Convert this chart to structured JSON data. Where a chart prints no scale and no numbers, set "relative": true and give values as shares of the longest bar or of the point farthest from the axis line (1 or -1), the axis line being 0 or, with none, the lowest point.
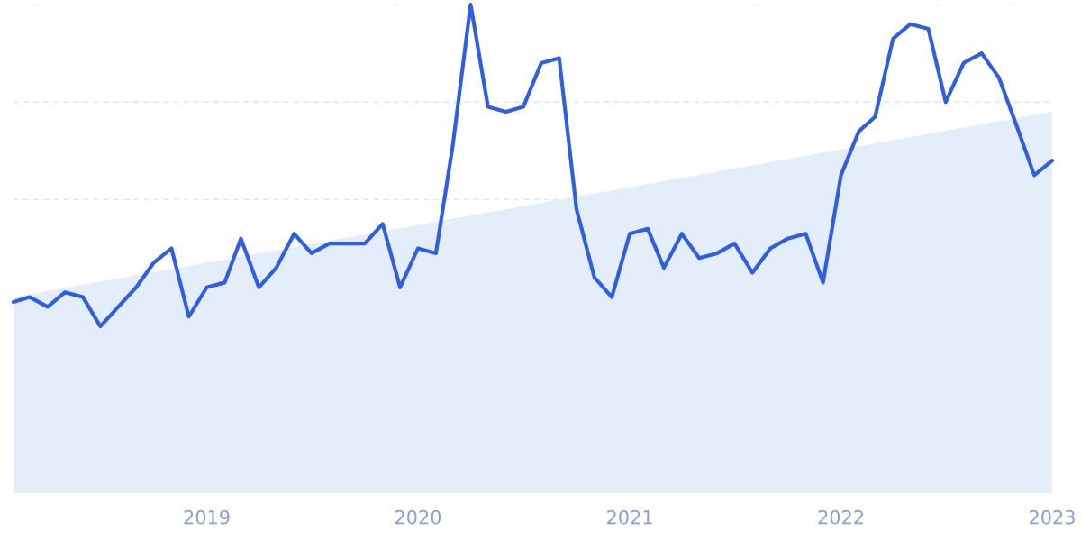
{
  "chart_data": {
    "type": "line",
    "relative": true,
    "grid": "y",
    "legend": false,
    "tick_labels": "x",
    "xlim": [
      "2018-02",
      "2023-01"
    ],
    "xticks": [
      {
        "value": "2019-01",
        "label": "2019"
      },
      {
        "value": "2020-01",
        "label": "2020"
      },
      {
        "value": "2021-01",
        "label": "2021"
      },
      {
        "value": "2022-01",
        "label": "2022"
      },
      {
        "value": "2023-01",
        "label": "2023"
      }
    ],
    "series": [
      {
        "type": "area",
        "color": "#e4eefb",
        "x": [
          "2018-02",
          "2023-01"
        ],
        "values": [
          0.4,
          0.78
        ]
      },
      {
        "color": "#2f5fe0",
        "x": [
          "2018-02",
          "2018-03",
          "2018-04",
          "2018-05",
          "2018-06",
          "2018-07",
          "2018-08",
          "2018-09",
          "2018-10",
          "2018-11",
          "2018-12",
          "2019-01",
          "2019-02",
          "2019-03",
          "2019-04",
          "2019-05",
          "2019-06",
          "2019-07",
          "2019-08",
          "2019-09",
          "2019-10",
          "2019-11",
          "2019-12",
          "2020-01",
          "2020-02",
          "2020-03",
          "2020-04",
          "2020-05",
          "2020-06",
          "2020-07",
          "2020-08",
          "2020-09",
          "2020-10",
          "2020-11",
          "2020-12",
          "2021-01",
          "2021-02",
          "2021-03",
          "2021-04",
          "2021-05",
          "2021-06",
          "2021-07",
          "2021-08",
          "2021-09",
          "2021-10",
          "2021-11",
          "2021-12",
          "2022-01",
          "2022-02",
          "2022-03",
          "2022-04",
          "2022-05",
          "2022-06",
          "2022-07",
          "2022-08",
          "2022-09",
          "2022-10",
          "2022-11",
          "2022-12",
          "2023-01"
        ],
        "values": [
          0.39,
          0.4,
          0.38,
          0.41,
          0.4,
          0.34,
          0.38,
          0.42,
          0.47,
          0.5,
          0.36,
          0.42,
          0.43,
          0.52,
          0.42,
          0.46,
          0.53,
          0.49,
          0.51,
          0.51,
          0.51,
          0.55,
          0.42,
          0.5,
          0.49,
          0.71,
          1.0,
          0.79,
          0.78,
          0.79,
          0.88,
          0.89,
          0.58,
          0.44,
          0.4,
          0.53,
          0.54,
          0.46,
          0.53,
          0.48,
          0.49,
          0.51,
          0.45,
          0.5,
          0.52,
          0.53,
          0.43,
          0.65,
          0.74,
          0.77,
          0.93,
          0.96,
          0.95,
          0.8,
          0.88,
          0.9,
          0.85,
          0.75,
          0.65,
          0.68
        ]
      }
    ]
  }
}
